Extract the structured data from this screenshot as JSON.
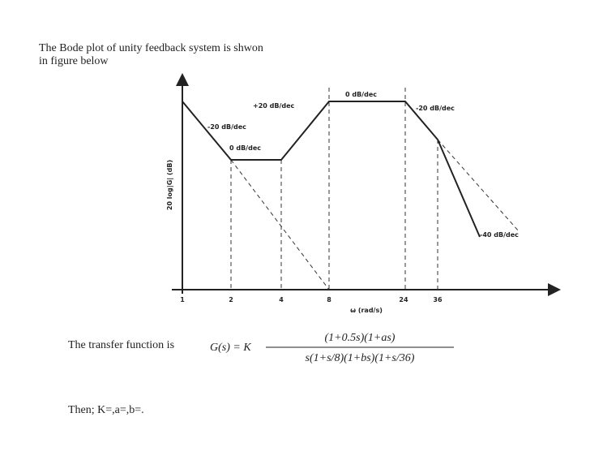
{
  "question": {
    "line1": "The Bode plot of unity feedback system is shwon",
    "line2": "in figure below",
    "then": "Then; K=,a=,b=."
  },
  "figure": {
    "y_label": "20 log|G| (dB)",
    "x_label": "ω (rad/s)",
    "x_ticks": [
      "1",
      "2",
      "4",
      "8",
      "24",
      "36"
    ],
    "slope_labels": [
      "-20 dB/dec",
      "+20 dB/dec",
      "0 dB/dec",
      "0 dB/dec",
      "-20 dB/dec",
      "-40 dB/dec"
    ]
  },
  "transfer": {
    "prefix": "The transfer function is",
    "lhs": "G(s) = K",
    "numerator": "(1+0.5s)(1+as)",
    "denominator": "s(1+s/8)(1+bs)(1+s/36)"
  }
}
